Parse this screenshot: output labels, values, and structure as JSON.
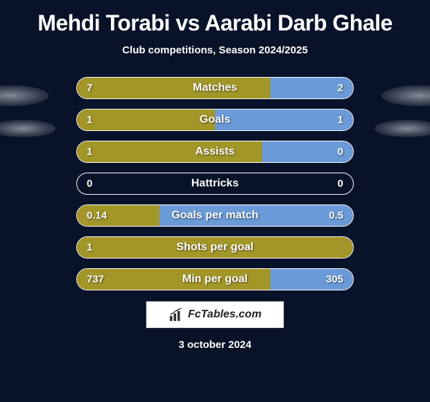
{
  "title": "Mehdi Torabi vs Aarabi Darb Ghale",
  "subtitle": "Club competitions, Season 2024/2025",
  "date": "3 october 2024",
  "logo_text": "FcTables.com",
  "colors": {
    "background": "#08132a",
    "left_bar": "#a39628",
    "right_bar": "#6a9bd8",
    "text": "#ffffff",
    "border": "#ffffff"
  },
  "rows": [
    {
      "label": "Matches",
      "left_value": "7",
      "right_value": "2",
      "left_width": 70,
      "right_width": 30,
      "left_color": "#a39628",
      "right_color": "#6a9bd8"
    },
    {
      "label": "Goals",
      "left_value": "1",
      "right_value": "1",
      "left_width": 50,
      "right_width": 50,
      "left_color": "#a39628",
      "right_color": "#6a9bd8"
    },
    {
      "label": "Assists",
      "left_value": "1",
      "right_value": "0",
      "left_width": 67,
      "right_width": 33,
      "left_color": "#a39628",
      "right_color": "#6a9bd8"
    },
    {
      "label": "Hattricks",
      "left_value": "0",
      "right_value": "0",
      "left_width": 0,
      "right_width": 0,
      "left_color": "#a39628",
      "right_color": "#6a9bd8"
    },
    {
      "label": "Goals per match",
      "left_value": "0.14",
      "right_value": "0.5",
      "left_width": 30,
      "right_width": 70,
      "left_color": "#a39628",
      "right_color": "#6a9bd8"
    },
    {
      "label": "Shots per goal",
      "left_value": "1",
      "right_value": "",
      "left_width": 100,
      "right_width": 0,
      "left_color": "#a39628",
      "right_color": "#6a9bd8"
    },
    {
      "label": "Min per goal",
      "left_value": "737",
      "right_value": "305",
      "left_width": 70,
      "right_width": 30,
      "left_color": "#a39628",
      "right_color": "#6a9bd8"
    }
  ]
}
